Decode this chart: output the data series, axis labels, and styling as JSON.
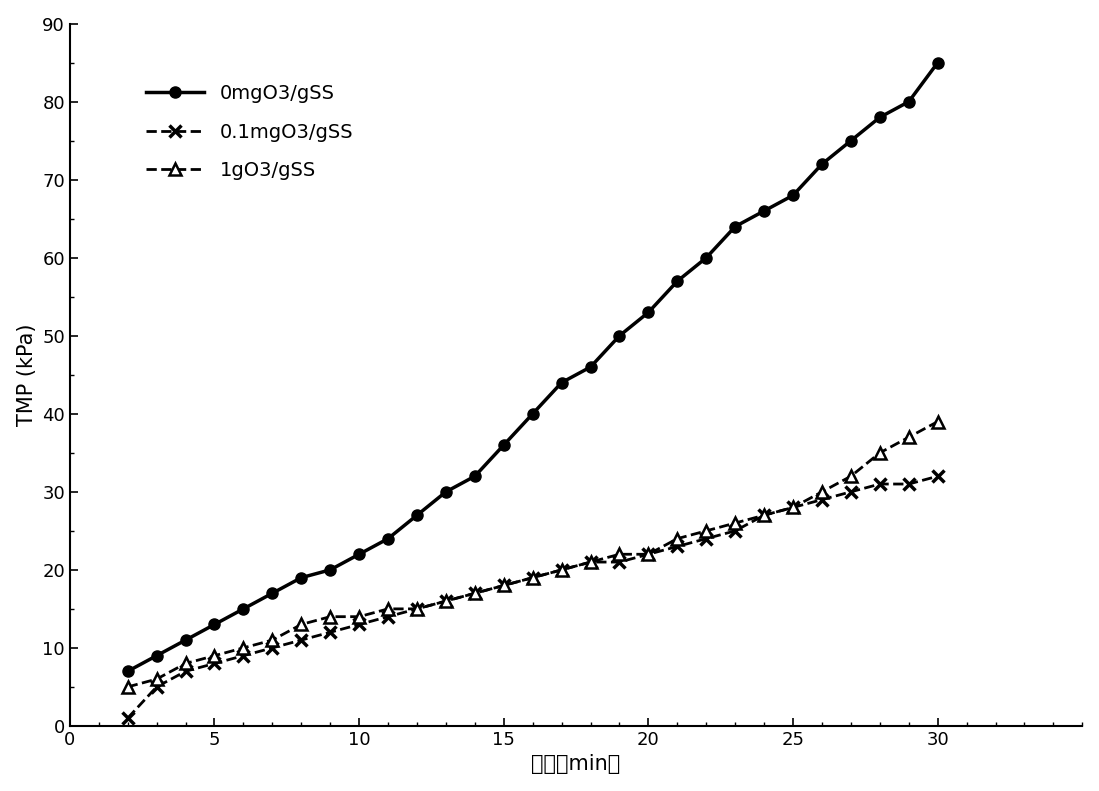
{
  "series1_label": "0mgO3/gSS",
  "series2_label": "0.1mgO3/gSS",
  "series3_label": "1gO3/gSS",
  "series1_x": [
    2,
    3,
    4,
    5,
    6,
    7,
    8,
    9,
    10,
    11,
    12,
    13,
    14,
    15,
    16,
    17,
    18,
    19,
    20,
    21,
    22,
    23,
    24,
    25,
    26,
    27,
    28,
    29,
    30
  ],
  "series1_y": [
    7,
    9,
    11,
    13,
    15,
    17,
    19,
    20,
    22,
    24,
    27,
    30,
    32,
    36,
    40,
    44,
    46,
    50,
    53,
    57,
    60,
    64,
    66,
    68,
    72,
    75,
    78,
    80,
    85
  ],
  "series2_x": [
    2,
    3,
    4,
    5,
    6,
    7,
    8,
    9,
    10,
    11,
    12,
    13,
    14,
    15,
    16,
    17,
    18,
    19,
    20,
    21,
    22,
    23,
    24,
    25,
    26,
    27,
    28,
    29,
    30
  ],
  "series2_y": [
    1,
    5,
    7,
    8,
    9,
    10,
    11,
    12,
    13,
    14,
    15,
    16,
    17,
    18,
    19,
    20,
    21,
    21,
    22,
    23,
    24,
    25,
    27,
    28,
    29,
    30,
    31,
    31,
    32
  ],
  "series3_x": [
    2,
    3,
    4,
    5,
    6,
    7,
    8,
    9,
    10,
    11,
    12,
    13,
    14,
    15,
    16,
    17,
    18,
    19,
    20,
    21,
    22,
    23,
    24,
    25,
    26,
    27,
    28,
    29,
    30
  ],
  "series3_y": [
    5,
    6,
    8,
    9,
    10,
    11,
    13,
    14,
    14,
    15,
    15,
    16,
    17,
    18,
    19,
    20,
    21,
    22,
    22,
    24,
    25,
    26,
    27,
    28,
    30,
    32,
    35,
    37,
    39
  ],
  "xlabel": "时间（min）",
  "ylabel": "TMP (kPa)",
  "xlim": [
    0,
    35
  ],
  "ylim": [
    0,
    90
  ],
  "xticks": [
    0,
    5,
    10,
    15,
    20,
    25,
    30
  ],
  "yticks": [
    0,
    10,
    20,
    30,
    40,
    50,
    60,
    70,
    80,
    90
  ],
  "line_color": "#000000",
  "line_width": 2.0,
  "marker_size": 8,
  "background_color": "#ffffff",
  "legend_fontsize": 14,
  "axis_fontsize": 15,
  "tick_fontsize": 13
}
